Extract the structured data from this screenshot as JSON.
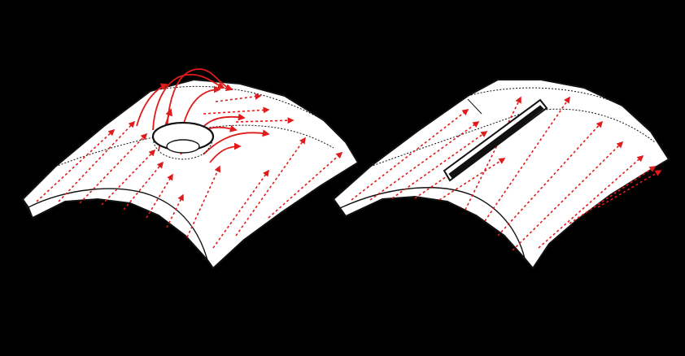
{
  "colors": {
    "background": "#000000",
    "surface_fill": "#ffffff",
    "outline": "#111111",
    "flow_lines": "#e01b1b"
  },
  "panels": [
    {
      "id": "surface-with-circular-hole",
      "defect": "circular-hole"
    },
    {
      "id": "surface-with-slot",
      "defect": "slot"
    }
  ]
}
